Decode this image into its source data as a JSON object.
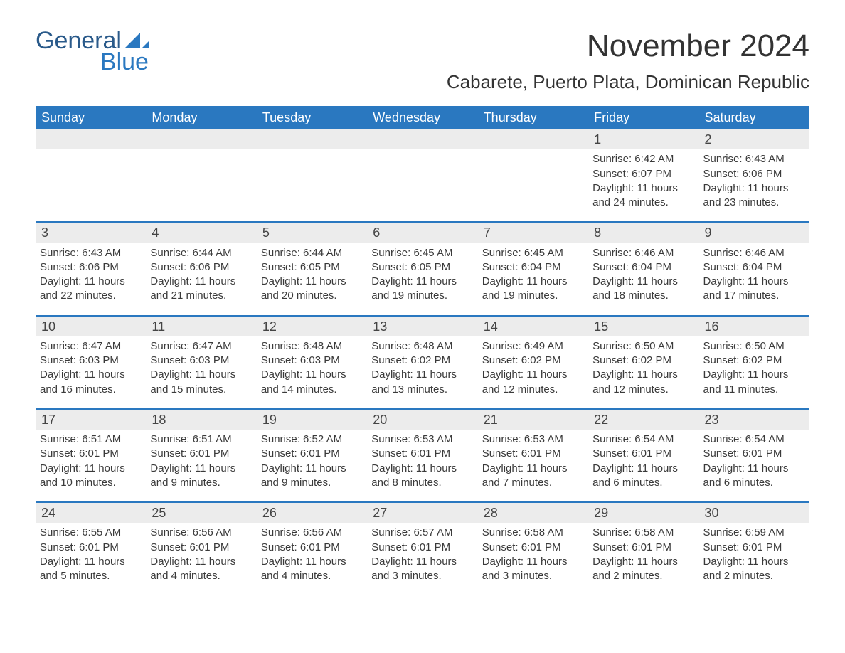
{
  "logo": {
    "text1": "General",
    "text2": "Blue",
    "icon_color": "#2a78c0"
  },
  "title": "November 2024",
  "location": "Cabarete, Puerto Plata, Dominican Republic",
  "header_bg": "#2a78c0",
  "header_fg": "#ffffff",
  "daynum_bg": "#ececec",
  "rule_color": "#2a78c0",
  "text_color": "#3a3a3a",
  "day_names": [
    "Sunday",
    "Monday",
    "Tuesday",
    "Wednesday",
    "Thursday",
    "Friday",
    "Saturday"
  ],
  "weeks": [
    [
      null,
      null,
      null,
      null,
      null,
      {
        "n": "1",
        "sunrise": "6:42 AM",
        "sunset": "6:07 PM",
        "daylight": "11 hours and 24 minutes."
      },
      {
        "n": "2",
        "sunrise": "6:43 AM",
        "sunset": "6:06 PM",
        "daylight": "11 hours and 23 minutes."
      }
    ],
    [
      {
        "n": "3",
        "sunrise": "6:43 AM",
        "sunset": "6:06 PM",
        "daylight": "11 hours and 22 minutes."
      },
      {
        "n": "4",
        "sunrise": "6:44 AM",
        "sunset": "6:06 PM",
        "daylight": "11 hours and 21 minutes."
      },
      {
        "n": "5",
        "sunrise": "6:44 AM",
        "sunset": "6:05 PM",
        "daylight": "11 hours and 20 minutes."
      },
      {
        "n": "6",
        "sunrise": "6:45 AM",
        "sunset": "6:05 PM",
        "daylight": "11 hours and 19 minutes."
      },
      {
        "n": "7",
        "sunrise": "6:45 AM",
        "sunset": "6:04 PM",
        "daylight": "11 hours and 19 minutes."
      },
      {
        "n": "8",
        "sunrise": "6:46 AM",
        "sunset": "6:04 PM",
        "daylight": "11 hours and 18 minutes."
      },
      {
        "n": "9",
        "sunrise": "6:46 AM",
        "sunset": "6:04 PM",
        "daylight": "11 hours and 17 minutes."
      }
    ],
    [
      {
        "n": "10",
        "sunrise": "6:47 AM",
        "sunset": "6:03 PM",
        "daylight": "11 hours and 16 minutes."
      },
      {
        "n": "11",
        "sunrise": "6:47 AM",
        "sunset": "6:03 PM",
        "daylight": "11 hours and 15 minutes."
      },
      {
        "n": "12",
        "sunrise": "6:48 AM",
        "sunset": "6:03 PM",
        "daylight": "11 hours and 14 minutes."
      },
      {
        "n": "13",
        "sunrise": "6:48 AM",
        "sunset": "6:02 PM",
        "daylight": "11 hours and 13 minutes."
      },
      {
        "n": "14",
        "sunrise": "6:49 AM",
        "sunset": "6:02 PM",
        "daylight": "11 hours and 12 minutes."
      },
      {
        "n": "15",
        "sunrise": "6:50 AM",
        "sunset": "6:02 PM",
        "daylight": "11 hours and 12 minutes."
      },
      {
        "n": "16",
        "sunrise": "6:50 AM",
        "sunset": "6:02 PM",
        "daylight": "11 hours and 11 minutes."
      }
    ],
    [
      {
        "n": "17",
        "sunrise": "6:51 AM",
        "sunset": "6:01 PM",
        "daylight": "11 hours and 10 minutes."
      },
      {
        "n": "18",
        "sunrise": "6:51 AM",
        "sunset": "6:01 PM",
        "daylight": "11 hours and 9 minutes."
      },
      {
        "n": "19",
        "sunrise": "6:52 AM",
        "sunset": "6:01 PM",
        "daylight": "11 hours and 9 minutes."
      },
      {
        "n": "20",
        "sunrise": "6:53 AM",
        "sunset": "6:01 PM",
        "daylight": "11 hours and 8 minutes."
      },
      {
        "n": "21",
        "sunrise": "6:53 AM",
        "sunset": "6:01 PM",
        "daylight": "11 hours and 7 minutes."
      },
      {
        "n": "22",
        "sunrise": "6:54 AM",
        "sunset": "6:01 PM",
        "daylight": "11 hours and 6 minutes."
      },
      {
        "n": "23",
        "sunrise": "6:54 AM",
        "sunset": "6:01 PM",
        "daylight": "11 hours and 6 minutes."
      }
    ],
    [
      {
        "n": "24",
        "sunrise": "6:55 AM",
        "sunset": "6:01 PM",
        "daylight": "11 hours and 5 minutes."
      },
      {
        "n": "25",
        "sunrise": "6:56 AM",
        "sunset": "6:01 PM",
        "daylight": "11 hours and 4 minutes."
      },
      {
        "n": "26",
        "sunrise": "6:56 AM",
        "sunset": "6:01 PM",
        "daylight": "11 hours and 4 minutes."
      },
      {
        "n": "27",
        "sunrise": "6:57 AM",
        "sunset": "6:01 PM",
        "daylight": "11 hours and 3 minutes."
      },
      {
        "n": "28",
        "sunrise": "6:58 AM",
        "sunset": "6:01 PM",
        "daylight": "11 hours and 3 minutes."
      },
      {
        "n": "29",
        "sunrise": "6:58 AM",
        "sunset": "6:01 PM",
        "daylight": "11 hours and 2 minutes."
      },
      {
        "n": "30",
        "sunrise": "6:59 AM",
        "sunset": "6:01 PM",
        "daylight": "11 hours and 2 minutes."
      }
    ]
  ],
  "labels": {
    "sunrise": "Sunrise:",
    "sunset": "Sunset:",
    "daylight": "Daylight:"
  }
}
